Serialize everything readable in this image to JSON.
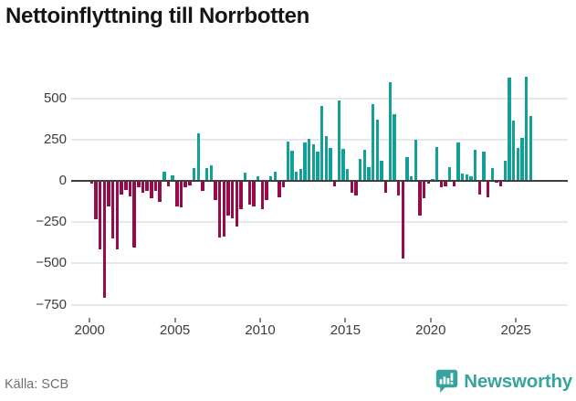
{
  "title": "Nettoinflyttning till Norrbotten",
  "source": "Källa: SCB",
  "branding": {
    "name": "Newsworthy",
    "icon": "newsworthy-speech-bubble-chart-icon",
    "color": "#38a39c"
  },
  "colors": {
    "positive_bar": "#13a099",
    "negative_bar": "#970b4b",
    "zero_line": "#3f3f3f",
    "gridline": "#e8e8e8",
    "axis_text": "#3c3c3c",
    "muted_text": "#6f6f6f"
  },
  "chart_data": {
    "type": "bar",
    "title": "Nettoinflyttning till Norrbotten",
    "xlabel": "",
    "ylabel": "",
    "frequency": "quarterly",
    "x_start_year": 2000,
    "x_end_year": 2025,
    "x_tick_labels": [
      "2000",
      "2005",
      "2010",
      "2015",
      "2020",
      "2025"
    ],
    "y_ticks": [
      500,
      250,
      0,
      -250,
      -500,
      -750
    ],
    "y_tick_labels": [
      "500",
      "250",
      "0",
      "−250",
      "−500",
      "−750"
    ],
    "ylim": [
      -800,
      660
    ],
    "grid": true,
    "legend": false,
    "values": [
      -10,
      -225,
      -410,
      -700,
      -150,
      -345,
      -410,
      -75,
      -50,
      -90,
      -400,
      -35,
      -65,
      -55,
      -100,
      -55,
      -120,
      55,
      -30,
      35,
      -150,
      -155,
      -35,
      -20,
      80,
      290,
      -55,
      75,
      95,
      -110,
      -340,
      -330,
      -205,
      -220,
      -270,
      -165,
      50,
      -140,
      -150,
      30,
      -165,
      -110,
      30,
      55,
      -95,
      -35,
      240,
      185,
      55,
      70,
      230,
      255,
      220,
      175,
      455,
      270,
      200,
      -30,
      485,
      195,
      70,
      -65,
      -85,
      130,
      190,
      85,
      465,
      370,
      120,
      -65,
      600,
      405,
      -85,
      -465,
      145,
      30,
      250,
      -205,
      -100,
      -10,
      10,
      205,
      -35,
      -30,
      85,
      -30,
      235,
      45,
      40,
      30,
      190,
      -75,
      175,
      -95,
      75,
      -5,
      -30,
      120,
      625,
      365,
      200,
      260,
      630,
      395
    ]
  }
}
